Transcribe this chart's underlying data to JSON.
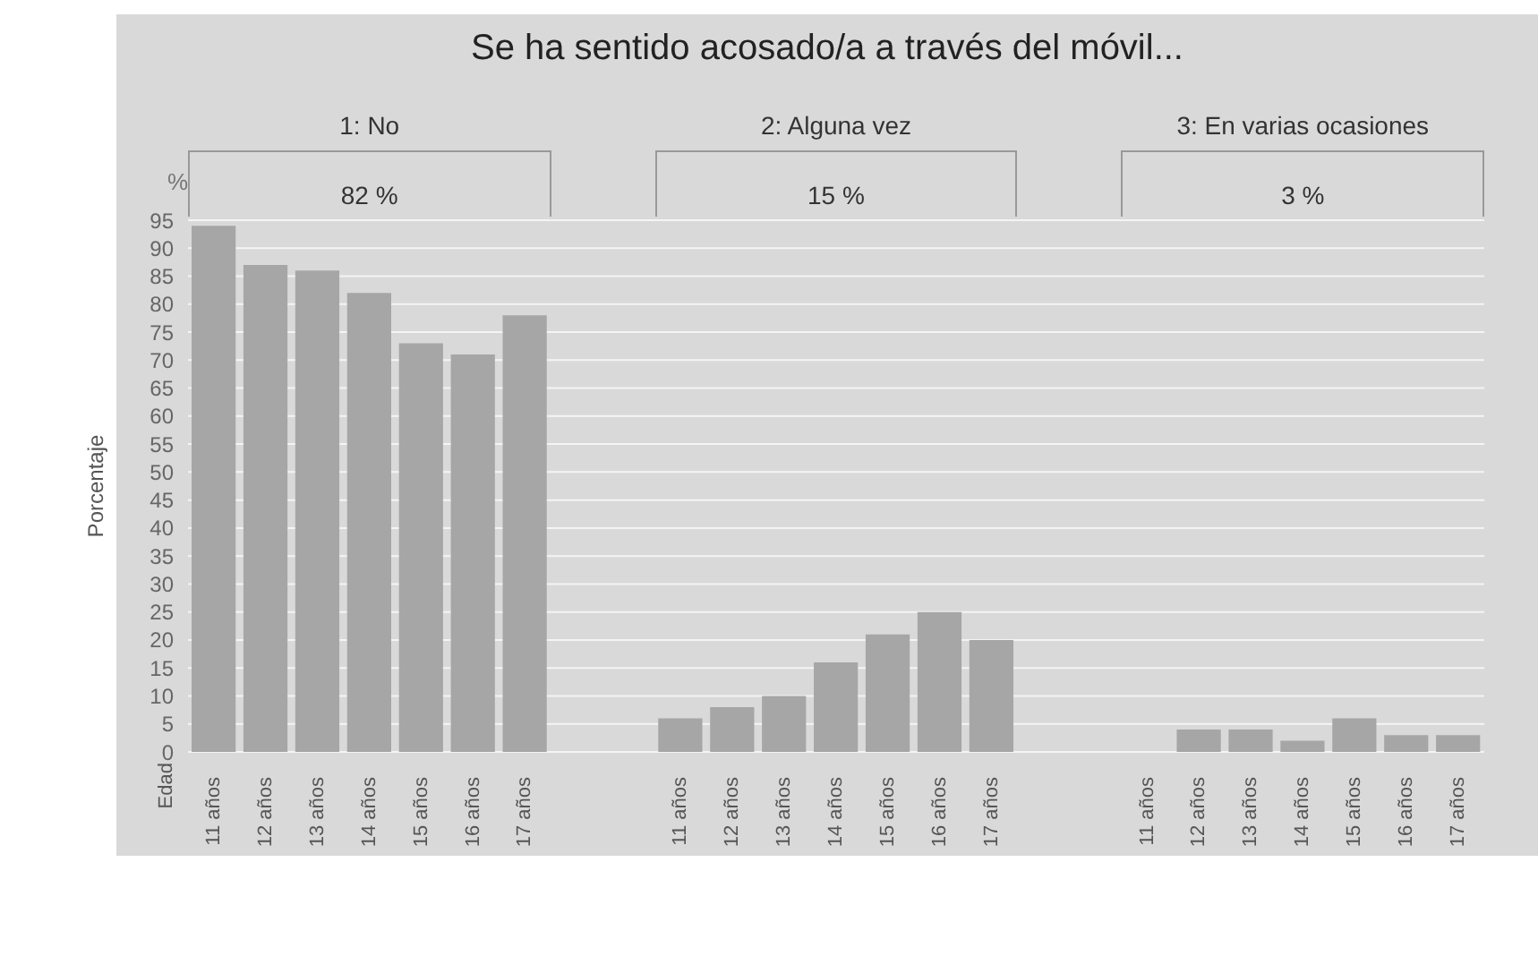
{
  "chart_data": {
    "type": "bar",
    "title": "Se ha sentido acosado/a a través del móvil...",
    "ylabel": "Porcentaje",
    "categories": [
      "11 años",
      "12 años",
      "13 años",
      "14 años",
      "15 años",
      "16 años",
      "17 años",
      null,
      null,
      "11 años",
      "12 años",
      "13 años",
      "14 años",
      "15 años",
      "16 años",
      "17 años",
      null,
      null,
      "11 años",
      "12 años",
      "13 años",
      "14 años",
      "15 años",
      "16 años",
      "17 años"
    ],
    "values": [
      94,
      87,
      86,
      82,
      73,
      71,
      78,
      null,
      null,
      6,
      8,
      10,
      16,
      21,
      25,
      20,
      null,
      null,
      0,
      4,
      4,
      2,
      6,
      3,
      3
    ],
    "color": "#a6a6a6",
    "ylim": [
      0,
      95
    ],
    "yticks": [
      0,
      5,
      10,
      15,
      20,
      25,
      30,
      35,
      40,
      45,
      50,
      55,
      60,
      65,
      70,
      75,
      80,
      85,
      90,
      95
    ],
    "grid": "y",
    "annotations": [
      "1: No",
      "82 %",
      "2: Alguna vez",
      "15 %",
      "3: En varias ocasiones",
      "3 %",
      "%",
      "Edad"
    ]
  }
}
